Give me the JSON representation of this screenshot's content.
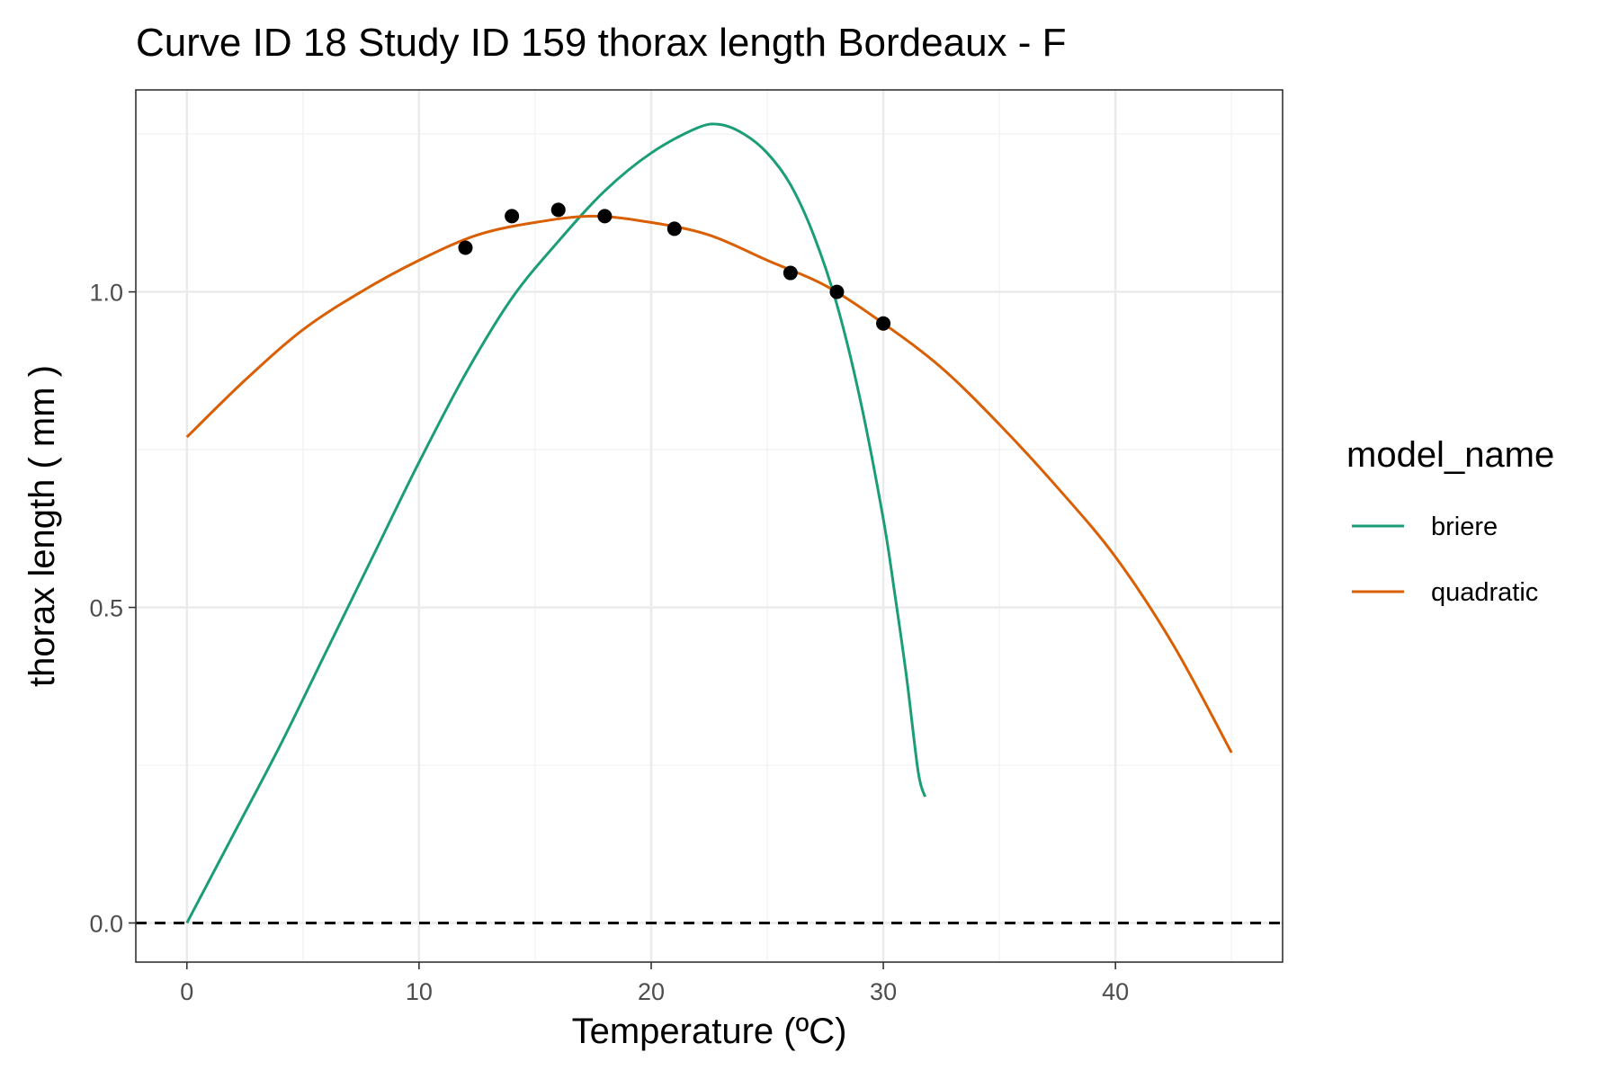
{
  "chart_data": {
    "type": "line",
    "title": "Curve ID 18 Study ID 159 thorax length Bordeaux - F",
    "xlabel": "Temperature (ºC)",
    "ylabel": "thorax length ( mm )",
    "xlim": [
      -2.2,
      47.2
    ],
    "ylim": [
      -0.062,
      1.32
    ],
    "x_ticks": [
      0,
      10,
      20,
      30,
      40
    ],
    "y_ticks": [
      0.0,
      0.5,
      1.0
    ],
    "x_tick_labels": [
      "0",
      "10",
      "20",
      "30",
      "40"
    ],
    "y_tick_labels": [
      "0.0",
      "0.5",
      "1.0"
    ],
    "grid": true,
    "reference_line": {
      "y": 0.0,
      "style": "dashed",
      "color": "#000000"
    },
    "points": {
      "x": [
        12,
        14,
        16,
        18,
        21,
        26,
        28,
        30
      ],
      "y": [
        1.07,
        1.12,
        1.13,
        1.12,
        1.1,
        1.03,
        1.0,
        0.95
      ],
      "color": "#000000"
    },
    "series": [
      {
        "name": "briere",
        "color": "#1b9e77",
        "x": [
          0,
          2,
          4,
          6,
          8,
          10,
          12,
          14,
          16,
          18,
          20,
          22,
          23,
          24,
          25,
          26,
          27,
          28,
          29,
          30,
          30.5,
          31,
          31.5,
          31.8
        ],
        "y": [
          0.0,
          0.14,
          0.28,
          0.43,
          0.58,
          0.73,
          0.87,
          0.99,
          1.08,
          1.16,
          1.22,
          1.26,
          1.265,
          1.25,
          1.22,
          1.17,
          1.09,
          0.98,
          0.83,
          0.64,
          0.52,
          0.39,
          0.24,
          0.2
        ]
      },
      {
        "name": "quadratic",
        "color": "#d95f02",
        "x": [
          0,
          2.5,
          5,
          7.5,
          10,
          12.5,
          15,
          17.5,
          20,
          22.5,
          25,
          27.5,
          30,
          32.5,
          35,
          37.5,
          40,
          42.5,
          45
        ],
        "y": [
          0.77,
          0.86,
          0.94,
          1.0,
          1.05,
          1.09,
          1.11,
          1.12,
          1.11,
          1.09,
          1.05,
          1.01,
          0.95,
          0.88,
          0.79,
          0.69,
          0.58,
          0.44,
          0.27
        ]
      }
    ],
    "legend": {
      "title": "model_name",
      "position": "right",
      "entries": [
        "briere",
        "quadratic"
      ]
    }
  }
}
